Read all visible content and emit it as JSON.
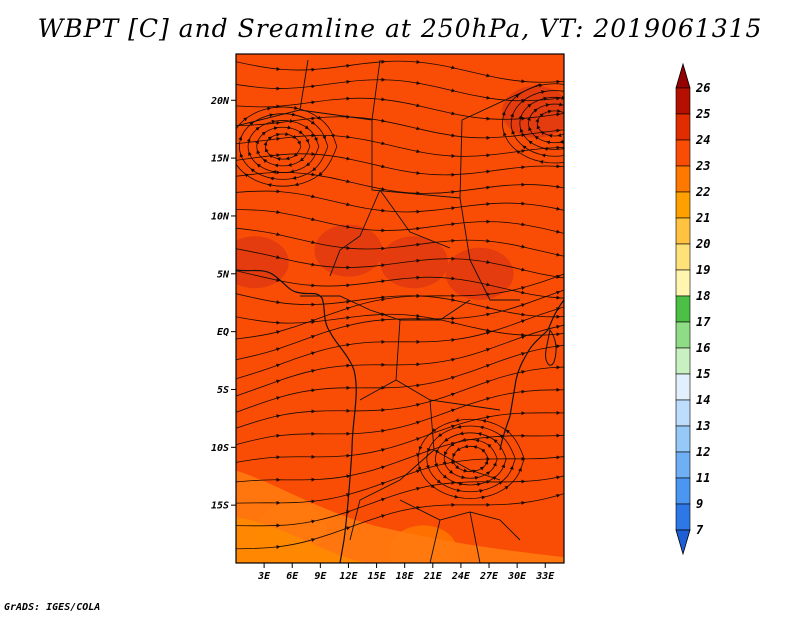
{
  "figure": {
    "title": "WBPT [C] and Sreamline at 250hPa, VT: 2019061315",
    "credit": "GrADS: IGES/COLA"
  },
  "chart_data": {
    "type": "map",
    "title": "WBPT [C] and Sreamline at 250hPa, VT: 2019061315",
    "variable": "WBPT [C]",
    "overlay": "Streamlines",
    "level": "250hPa",
    "valid_time": "2019061315",
    "lon_range": [
      0,
      35
    ],
    "lat_range": [
      -20,
      24
    ],
    "x_ticks": [
      {
        "value": 3,
        "label": "3E"
      },
      {
        "value": 6,
        "label": "6E"
      },
      {
        "value": 9,
        "label": "9E"
      },
      {
        "value": 12,
        "label": "12E"
      },
      {
        "value": 15,
        "label": "15E"
      },
      {
        "value": 18,
        "label": "18E"
      },
      {
        "value": 21,
        "label": "21E"
      },
      {
        "value": 24,
        "label": "24E"
      },
      {
        "value": 27,
        "label": "27E"
      },
      {
        "value": 30,
        "label": "30E"
      },
      {
        "value": 33,
        "label": "33E"
      }
    ],
    "y_ticks": [
      {
        "value": 20,
        "label": "20N"
      },
      {
        "value": 15,
        "label": "15N"
      },
      {
        "value": 10,
        "label": "10N"
      },
      {
        "value": 5,
        "label": "5N"
      },
      {
        "value": 0,
        "label": "EQ"
      },
      {
        "value": -5,
        "label": "5S"
      },
      {
        "value": -10,
        "label": "10S"
      },
      {
        "value": -15,
        "label": "15S"
      }
    ],
    "colorbar": {
      "levels": [
        "7",
        "9",
        "11",
        "12",
        "13",
        "14",
        "15",
        "16",
        "17",
        "18",
        "19",
        "20",
        "21",
        "22",
        "23",
        "24",
        "25",
        "26"
      ],
      "colors": [
        "#1f5fd6",
        "#2d78e6",
        "#4b96f0",
        "#6fb0f5",
        "#96c8f8",
        "#bedcfb",
        "#e2f0fd",
        "#c8f0c0",
        "#8fdc86",
        "#4cbf45",
        "#fff5ae",
        "#ffe17a",
        "#ffc241",
        "#ffa000",
        "#ff7800",
        "#f94d06",
        "#e02d00",
        "#b50f00",
        "#960000"
      ],
      "extend": "both"
    },
    "regions": [
      {
        "name": "base field",
        "value_range": [
          23,
          24
        ],
        "color": "#f94d06"
      },
      {
        "name": "Sahel maxima",
        "value_range": [
          24,
          25
        ],
        "color": "#e03a12",
        "location": [
          [
            2,
            6
          ],
          [
            12,
            7
          ],
          [
            19,
            6
          ],
          [
            26,
            5
          ]
        ]
      },
      {
        "name": "north-east maximum",
        "value_range": [
          24,
          25
        ],
        "color": "#e03a12",
        "location": [
          [
            32,
            19
          ]
        ]
      },
      {
        "name": "south-west minimum",
        "value_range": [
          22,
          23
        ],
        "color": "#ff7800",
        "location": [
          [
            6,
            -17
          ],
          [
            20,
            -19
          ]
        ]
      }
    ],
    "streamlines": {
      "features": [
        {
          "type": "anticyclone",
          "center": [
            5,
            16
          ]
        },
        {
          "type": "anticyclone",
          "center": [
            34,
            18
          ]
        },
        {
          "type": "anticyclone",
          "center": [
            25,
            -11
          ]
        }
      ]
    }
  }
}
